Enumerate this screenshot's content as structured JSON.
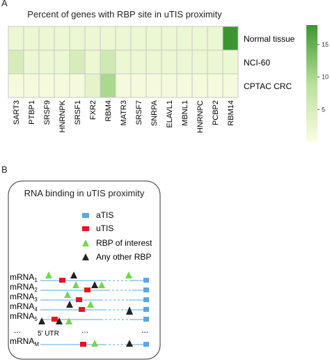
{
  "panel_a": {
    "label": "A",
    "title": "Percent of genes with RBP site in uTIS proximity",
    "chart_data": {
      "type": "heatmap",
      "title": "Percent of genes with RBP site in uTIS proximity",
      "rows": [
        "Normal tissue",
        "NCI-60",
        "CPTAC CRC"
      ],
      "columns": [
        "SART3",
        "PTBP1",
        "SRSF9",
        "HNRNPK",
        "SRSF1",
        "FXR2",
        "RBM4",
        "MATR3",
        "SRSF7",
        "SNRPA",
        "ELAVL1",
        "MBNL1",
        "HNRNPC",
        "PCBP2",
        "RBM14"
      ],
      "values": [
        [
          2,
          2,
          2,
          2,
          2,
          2,
          2,
          2,
          2,
          2,
          2,
          2,
          2,
          2,
          18
        ],
        [
          5,
          2,
          2,
          2,
          5,
          2,
          6,
          2,
          2,
          2,
          2,
          2,
          2,
          2,
          2
        ],
        [
          1,
          1,
          1,
          1,
          1,
          3,
          10,
          1,
          1,
          1,
          1,
          1,
          1,
          1,
          1
        ]
      ],
      "colorbar": {
        "ticks": [
          5,
          10,
          15
        ],
        "range": [
          0,
          18
        ],
        "low_color": "#fbfde3",
        "high_color": "#3c962f"
      }
    }
  },
  "panel_b": {
    "label": "B",
    "title": "RNA binding in uTIS proximity",
    "legend": [
      {
        "shape": "rect",
        "color": "#5aa6e0",
        "label": "aTIS"
      },
      {
        "shape": "rect",
        "color": "#e8141e",
        "label": "uTIS"
      },
      {
        "shape": "triangle",
        "color": "#74d64a",
        "label": "RBP of interest"
      },
      {
        "shape": "triangle",
        "color": "#222222",
        "label": "Any other RBP"
      }
    ],
    "mrnas": [
      {
        "name": "mRNA",
        "sub": "1"
      },
      {
        "name": "mRNA",
        "sub": "2"
      },
      {
        "name": "mRNA",
        "sub": "3"
      },
      {
        "name": "mRNA",
        "sub": "4"
      },
      {
        "name": "mRNA",
        "sub": "5"
      },
      {
        "name": "mRNA",
        "sub": "M"
      }
    ],
    "ellipsis": "...",
    "utr_label": "5' UTR"
  }
}
